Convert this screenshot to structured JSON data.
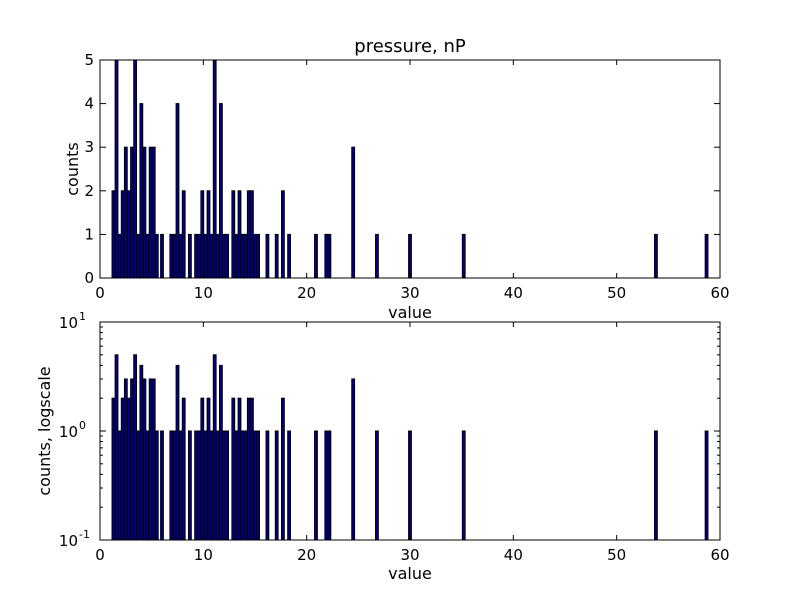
{
  "chart_data": [
    {
      "type": "bar",
      "title": "pressure, nP",
      "xlabel": "value",
      "ylabel": "counts",
      "xlim": [
        0,
        60
      ],
      "ylim": [
        0,
        5
      ],
      "yscale": "linear",
      "grid": false,
      "bar_color": "#00008b",
      "xticks": [
        "0",
        "10",
        "20",
        "30",
        "40",
        "50",
        "60"
      ],
      "yticks": [
        "0",
        "1",
        "2",
        "3",
        "4",
        "5"
      ],
      "x": [
        1.3,
        1.6,
        1.9,
        2.2,
        2.5,
        2.8,
        3.1,
        3.4,
        3.7,
        4.0,
        4.3,
        4.6,
        4.9,
        5.2,
        5.5,
        6.0,
        6.9,
        7.2,
        7.5,
        7.8,
        8.1,
        8.7,
        9.3,
        9.6,
        9.9,
        10.2,
        10.5,
        10.8,
        11.1,
        11.4,
        11.7,
        12.0,
        12.3,
        12.9,
        13.2,
        13.5,
        13.8,
        14.1,
        14.4,
        14.7,
        15.0,
        15.3,
        16.2,
        17.1,
        17.7,
        18.3,
        20.9,
        21.9,
        22.2,
        24.5,
        26.8,
        30.0,
        35.2,
        53.8,
        58.7
      ],
      "values": [
        2,
        5,
        1,
        2,
        3,
        2,
        3,
        5,
        1,
        4,
        3,
        1,
        3,
        3,
        1,
        1,
        1,
        1,
        4,
        1,
        2,
        1,
        1,
        1,
        2,
        1,
        2,
        1,
        5,
        1,
        4,
        1,
        1,
        2,
        1,
        2,
        1,
        1,
        2,
        2,
        1,
        1,
        1,
        1,
        2,
        1,
        1,
        1,
        1,
        3,
        1,
        1,
        1,
        1,
        1
      ]
    },
    {
      "type": "bar",
      "title": "",
      "xlabel": "value",
      "ylabel": "counts, logscale",
      "xlim": [
        0,
        60
      ],
      "ylim": [
        0.1,
        10
      ],
      "yscale": "log",
      "grid": false,
      "bar_color": "#00008b",
      "xticks": [
        "0",
        "10",
        "20",
        "30",
        "40",
        "50",
        "60"
      ],
      "yticks": [
        {
          "base": "10",
          "exp": "-1"
        },
        {
          "base": "10",
          "exp": "0"
        },
        {
          "base": "10",
          "exp": "1"
        }
      ],
      "x": [
        1.3,
        1.6,
        1.9,
        2.2,
        2.5,
        2.8,
        3.1,
        3.4,
        3.7,
        4.0,
        4.3,
        4.6,
        4.9,
        5.2,
        5.5,
        6.0,
        6.9,
        7.2,
        7.5,
        7.8,
        8.1,
        8.7,
        9.3,
        9.6,
        9.9,
        10.2,
        10.5,
        10.8,
        11.1,
        11.4,
        11.7,
        12.0,
        12.3,
        12.9,
        13.2,
        13.5,
        13.8,
        14.1,
        14.4,
        14.7,
        15.0,
        15.3,
        16.2,
        17.1,
        17.7,
        18.3,
        20.9,
        21.9,
        22.2,
        24.5,
        26.8,
        30.0,
        35.2,
        53.8,
        58.7
      ],
      "values": [
        2,
        5,
        1,
        2,
        3,
        2,
        3,
        5,
        1,
        4,
        3,
        1,
        3,
        3,
        1,
        1,
        1,
        1,
        4,
        1,
        2,
        1,
        1,
        1,
        2,
        1,
        2,
        1,
        5,
        1,
        4,
        1,
        1,
        2,
        1,
        2,
        1,
        1,
        2,
        2,
        1,
        1,
        1,
        1,
        2,
        1,
        1,
        1,
        1,
        3,
        1,
        1,
        1,
        1,
        1
      ]
    }
  ]
}
